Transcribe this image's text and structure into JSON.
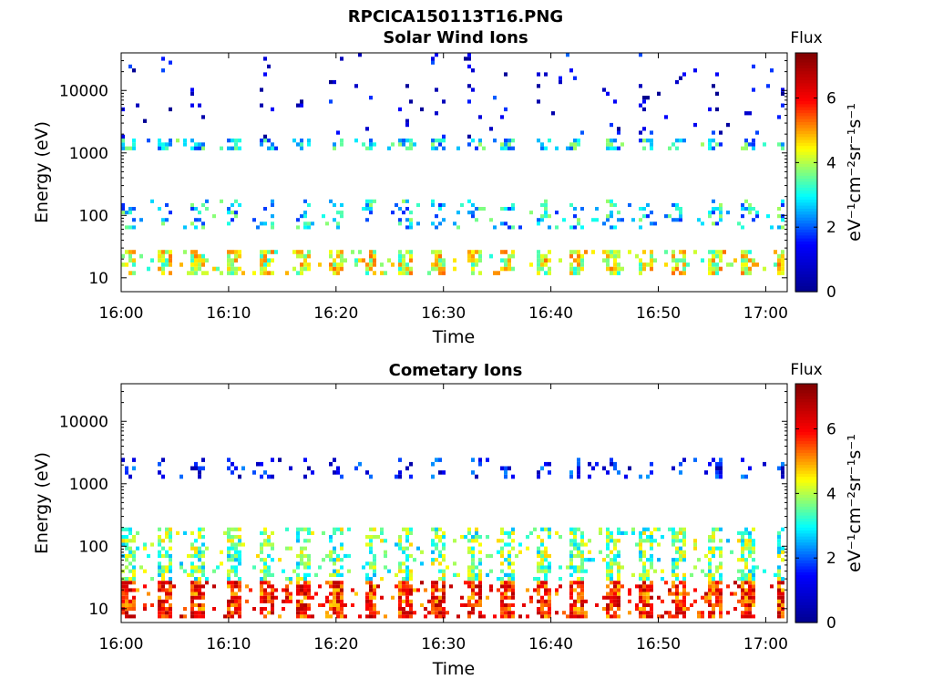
{
  "figure_title": "RPCICA150113T16.PNG",
  "colors": {
    "colormap": [
      "#00008f",
      "#0000ff",
      "#00ffff",
      "#ffff00",
      "#ff0000",
      "#800000"
    ],
    "axis": "#000000"
  },
  "chart_data": [
    {
      "type": "heatmap",
      "title": "Solar Wind Ions",
      "xlabel": "Time",
      "ylabel": "Energy (eV)",
      "x_ticks": [
        "16:00",
        "16:10",
        "16:20",
        "16:30",
        "16:40",
        "16:50",
        "17:00"
      ],
      "x_range": [
        "16:00",
        "17:02"
      ],
      "y_scale": "log",
      "y_ticks": [
        "10",
        "100",
        "1000",
        "10000"
      ],
      "y_range": [
        6,
        40000
      ],
      "colorbar": {
        "title": "Flux",
        "label": "eV⁻¹cm⁻²sr⁻¹s⁻¹",
        "ticks": [
          "0",
          "2",
          "4",
          "6"
        ],
        "range": [
          0,
          7.4
        ]
      },
      "sweep_period_min": 3.2,
      "bands": [
        {
          "energy_min": 11,
          "energy_max": 28,
          "flux": 4.2,
          "fill": 0.75
        },
        {
          "energy_min": 60,
          "energy_max": 180,
          "flux": 2.8,
          "fill": 0.3
        },
        {
          "energy_min": 1100,
          "energy_max": 1700,
          "flux": 2.8,
          "fill": 0.55
        },
        {
          "energy_min": 1700,
          "energy_max": 40000,
          "flux": 1.0,
          "fill": 0.05
        }
      ]
    },
    {
      "type": "heatmap",
      "title": "Cometary Ions",
      "xlabel": "Time",
      "ylabel": "Energy (eV)",
      "x_ticks": [
        "16:00",
        "16:10",
        "16:20",
        "16:30",
        "16:40",
        "16:50",
        "17:00"
      ],
      "x_range": [
        "16:00",
        "17:02"
      ],
      "y_scale": "log",
      "y_ticks": [
        "10",
        "100",
        "1000",
        "10000"
      ],
      "y_range": [
        6,
        40000
      ],
      "colorbar": {
        "title": "Flux",
        "label": "eV⁻¹cm⁻²sr⁻¹s⁻¹",
        "ticks": [
          "0",
          "2",
          "4",
          "6"
        ],
        "range": [
          0,
          7.4
        ]
      },
      "sweep_period_min": 3.2,
      "bands": [
        {
          "energy_min": 7,
          "energy_max": 28,
          "flux": 5.8,
          "fill": 0.85
        },
        {
          "energy_min": 28,
          "energy_max": 200,
          "flux": 3.6,
          "fill": 0.6
        },
        {
          "energy_min": 1200,
          "energy_max": 2600,
          "flux": 1.3,
          "fill": 0.25
        }
      ]
    }
  ]
}
